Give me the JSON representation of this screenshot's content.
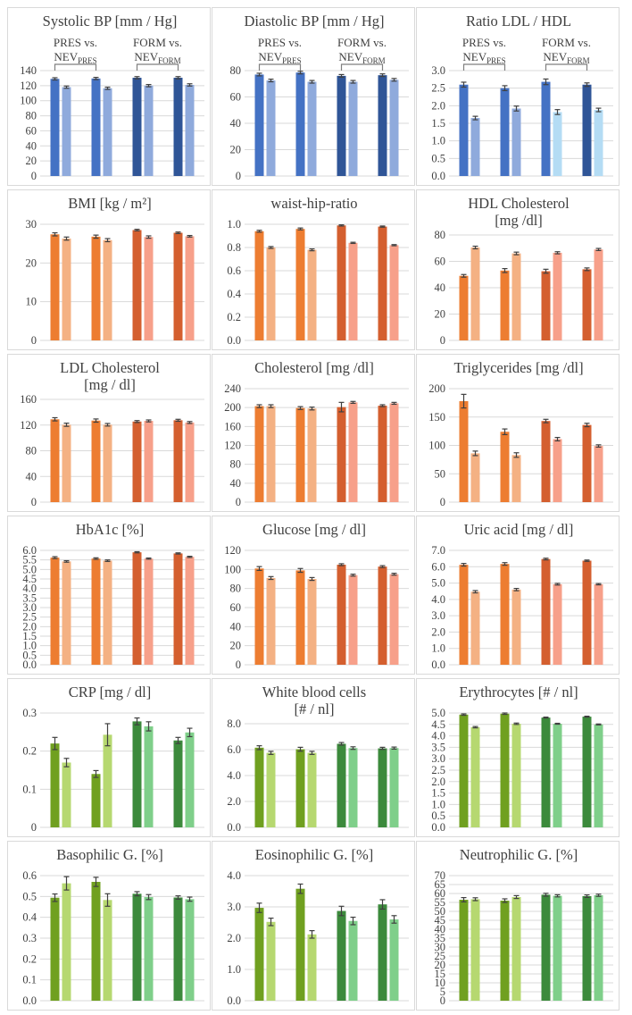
{
  "colors": {
    "blue": [
      "#4472c4",
      "#8faadc",
      "#2f5597",
      "#9dc3e6",
      "#b4dcf4"
    ],
    "orange": [
      "#ed7d31",
      "#f4b183",
      "#d45f2f",
      "#f7a08a"
    ],
    "green": [
      "#70a020",
      "#b6d870",
      "#3c8a3c",
      "#7fcf8a"
    ]
  },
  "comparisons": [
    {
      "main": "PRES vs.",
      "sub_a": "NEV",
      "sub_b": "PRES"
    },
    {
      "main": "FORM vs.",
      "sub_a": "NEV",
      "sub_b": "FORM"
    }
  ],
  "chart_data": [
    {
      "type": "bar",
      "title": [
        "Systolic BP [mm / Hg]"
      ],
      "ylim": [
        0,
        140
      ],
      "ticks": [
        "0",
        "20",
        "40",
        "60",
        "80",
        "100",
        "120",
        "140"
      ],
      "palette": "blue",
      "bracket": true,
      "values": [
        129,
        118,
        129.5,
        116.5,
        130.5,
        120,
        130.5,
        121
      ],
      "errors": [
        1.5,
        1.5,
        1.5,
        1.5,
        1.5,
        1.5,
        1.5,
        1.5
      ]
    },
    {
      "type": "bar",
      "title": [
        "Diastolic BP [mm / Hg]"
      ],
      "ylim": [
        0,
        80
      ],
      "ticks": [
        "0",
        "20",
        "40",
        "60",
        "80"
      ],
      "palette": "blue",
      "bracket": true,
      "values": [
        77,
        72.5,
        78.5,
        71.5,
        76,
        71.5,
        76.5,
        73
      ],
      "errors": [
        1,
        1,
        1,
        1,
        1,
        1,
        1,
        1
      ]
    },
    {
      "type": "bar",
      "title": [
        "Ratio LDL / HDL"
      ],
      "ylim": [
        0,
        3
      ],
      "ticks": [
        "0.0",
        "0.5",
        "1.0",
        "1.5",
        "2.0",
        "2.5",
        "3.0"
      ],
      "palette": "ratio",
      "bracket": true,
      "values": [
        2.6,
        1.65,
        2.5,
        1.92,
        2.68,
        1.82,
        2.6,
        1.88
      ],
      "errors": [
        0.07,
        0.05,
        0.07,
        0.07,
        0.08,
        0.07,
        0.05,
        0.05
      ]
    },
    {
      "type": "bar",
      "title": [
        "BMI [kg / m²]"
      ],
      "ylim": [
        0,
        30
      ],
      "ticks": [
        "0",
        "10",
        "20",
        "30"
      ],
      "palette": "orange",
      "values": [
        27.4,
        26.3,
        26.8,
        25.9,
        28.5,
        26.7,
        27.8,
        26.9
      ],
      "errors": [
        0.4,
        0.4,
        0.4,
        0.4,
        0.2,
        0.3,
        0.2,
        0.2
      ]
    },
    {
      "type": "bar",
      "title": [
        "waist-hip-ratio"
      ],
      "ylim": [
        0,
        1.0
      ],
      "ticks": [
        "0.0",
        "0.2",
        "0.4",
        "0.6",
        "0.8",
        "1.0"
      ],
      "palette": "orange",
      "values": [
        0.94,
        0.8,
        0.96,
        0.78,
        0.99,
        0.84,
        0.98,
        0.82
      ],
      "errors": [
        0.008,
        0.008,
        0.008,
        0.008,
        0.005,
        0.005,
        0.005,
        0.005
      ]
    },
    {
      "type": "bar",
      "title": [
        "HDL Cholesterol",
        "[mg /dl]"
      ],
      "ylim": [
        0,
        80
      ],
      "ticks": [
        "0",
        "20",
        "40",
        "60",
        "80"
      ],
      "palette": "orange",
      "values": [
        49,
        70.5,
        53,
        66,
        52.5,
        66.5,
        54,
        69
      ],
      "errors": [
        1,
        1,
        1.5,
        1,
        1.5,
        0.8,
        1,
        0.8
      ]
    },
    {
      "type": "bar",
      "title": [
        "LDL Cholesterol",
        "[mg / dl]"
      ],
      "ylim": [
        0,
        160
      ],
      "ticks": [
        "0",
        "40",
        "80",
        "120",
        "160"
      ],
      "palette": "orange",
      "values": [
        129,
        120.5,
        127,
        120.5,
        125.5,
        126.5,
        127.5,
        124
      ],
      "errors": [
        2.5,
        2.5,
        2.5,
        2,
        1.5,
        1.5,
        1.5,
        1.5
      ]
    },
    {
      "type": "bar",
      "title": [
        "Cholesterol [mg /dl]"
      ],
      "ylim": [
        0,
        240
      ],
      "ticks": [
        "0",
        "40",
        "80",
        "120",
        "160",
        "200",
        "240"
      ],
      "palette": "orange",
      "values": [
        203,
        203,
        199,
        198,
        201,
        211,
        204,
        209
      ],
      "errors": [
        3,
        3,
        3,
        3,
        10,
        2,
        2,
        2
      ]
    },
    {
      "type": "bar",
      "title": [
        "Triglycerides [mg /dl]"
      ],
      "ylim": [
        0,
        200
      ],
      "ticks": [
        "0",
        "50",
        "100",
        "150",
        "200"
      ],
      "palette": "orange",
      "values": [
        178,
        86,
        124,
        83,
        143,
        111,
        136,
        99
      ],
      "errors": [
        12,
        4,
        5,
        4,
        3,
        3,
        3,
        2
      ]
    },
    {
      "type": "bar",
      "title": [
        "HbA1c [%]"
      ],
      "ylim": [
        0,
        6.0
      ],
      "ticks": [
        "0.0",
        "0.5",
        "1.0",
        "1.5",
        "2.0",
        "2.5",
        "3.0",
        "3.5",
        "4.0",
        "4.5",
        "5.0",
        "5.5",
        "6.0"
      ],
      "palette": "orange",
      "values": [
        5.62,
        5.42,
        5.57,
        5.46,
        5.9,
        5.57,
        5.84,
        5.66
      ],
      "errors": [
        0.05,
        0.04,
        0.04,
        0.04,
        0.03,
        0.03,
        0.03,
        0.03
      ]
    },
    {
      "type": "bar",
      "title": [
        "Glucose [mg / dl]"
      ],
      "ylim": [
        0,
        120
      ],
      "ticks": [
        "0",
        "20",
        "40",
        "60",
        "80",
        "100",
        "120"
      ],
      "palette": "orange",
      "values": [
        101,
        91,
        99,
        90,
        105,
        94,
        103,
        95
      ],
      "errors": [
        2,
        1.5,
        2,
        1.5,
        1,
        1,
        1,
        1
      ]
    },
    {
      "type": "bar",
      "title": [
        "Uric acid [mg / dl]"
      ],
      "ylim": [
        0,
        7.0
      ],
      "ticks": [
        "0.0",
        "1.0",
        "2.0",
        "3.0",
        "4.0",
        "5.0",
        "6.0",
        "7.0"
      ],
      "palette": "orange",
      "values": [
        6.12,
        4.47,
        6.17,
        4.6,
        6.47,
        4.93,
        6.37,
        4.93
      ],
      "errors": [
        0.08,
        0.07,
        0.08,
        0.07,
        0.05,
        0.05,
        0.04,
        0.04
      ]
    },
    {
      "type": "bar",
      "title": [
        "CRP [mg / dl]"
      ],
      "ylim": [
        0,
        0.3
      ],
      "ticks": [
        "0",
        "0.1",
        "0.2",
        "0.3"
      ],
      "palette": "green",
      "values": [
        0.22,
        0.17,
        0.14,
        0.243,
        0.278,
        0.265,
        0.228,
        0.249
      ],
      "errors": [
        0.016,
        0.011,
        0.009,
        0.029,
        0.009,
        0.012,
        0.008,
        0.011
      ]
    },
    {
      "type": "bar",
      "title": [
        "White blood cells",
        "[# / nl]"
      ],
      "ylim": [
        0,
        8.0
      ],
      "ticks": [
        "0.0",
        "2.0",
        "4.0",
        "6.0",
        "8.0"
      ],
      "palette": "green",
      "values": [
        6.15,
        5.75,
        6.03,
        5.75,
        6.45,
        6.12,
        6.1,
        6.12
      ],
      "errors": [
        0.15,
        0.12,
        0.15,
        0.12,
        0.1,
        0.1,
        0.08,
        0.08
      ]
    },
    {
      "type": "bar",
      "title": [
        "Erythrocytes [# / nl]"
      ],
      "ylim": [
        0,
        5.0
      ],
      "ticks": [
        "0.0",
        "0.5",
        "1.0",
        "1.5",
        "2.0",
        "2.5",
        "3.0",
        "3.5",
        "4.0",
        "4.5",
        "5.0"
      ],
      "palette": "green",
      "values": [
        4.93,
        4.38,
        4.97,
        4.53,
        4.8,
        4.53,
        4.84,
        4.5
      ],
      "errors": [
        0.03,
        0.03,
        0.03,
        0.03,
        0.02,
        0.02,
        0.02,
        0.02
      ]
    },
    {
      "type": "bar",
      "title": [
        "Basophilic G. [%]"
      ],
      "ylim": [
        0,
        0.6
      ],
      "ticks": [
        "0.0",
        "0.1",
        "0.2",
        "0.3",
        "0.4",
        "0.5",
        "0.6"
      ],
      "palette": "green",
      "values": [
        0.494,
        0.563,
        0.57,
        0.483,
        0.513,
        0.497,
        0.495,
        0.487
      ],
      "errors": [
        0.018,
        0.032,
        0.022,
        0.03,
        0.01,
        0.012,
        0.008,
        0.01
      ]
    },
    {
      "type": "bar",
      "title": [
        "Eosinophilic G. [%]"
      ],
      "ylim": [
        0,
        4.0
      ],
      "ticks": [
        "0.0",
        "1.0",
        "2.0",
        "3.0",
        "4.0"
      ],
      "palette": "green",
      "values": [
        2.97,
        2.52,
        3.58,
        2.12,
        2.87,
        2.55,
        3.08,
        2.6
      ],
      "errors": [
        0.15,
        0.12,
        0.15,
        0.12,
        0.15,
        0.12,
        0.15,
        0.12
      ]
    },
    {
      "type": "bar",
      "title": [
        "Neutrophilic G. [%]"
      ],
      "ylim": [
        0,
        70
      ],
      "ticks": [
        "0",
        "5",
        "10",
        "15",
        "20",
        "25",
        "30",
        "35",
        "40",
        "45",
        "50",
        "55",
        "60",
        "65",
        "70"
      ],
      "palette": "green",
      "values": [
        56.5,
        56.8,
        56,
        58,
        59.3,
        58.7,
        58.5,
        59
      ],
      "errors": [
        1.2,
        0.8,
        1,
        0.8,
        0.8,
        0.6,
        0.7,
        0.6
      ]
    }
  ]
}
